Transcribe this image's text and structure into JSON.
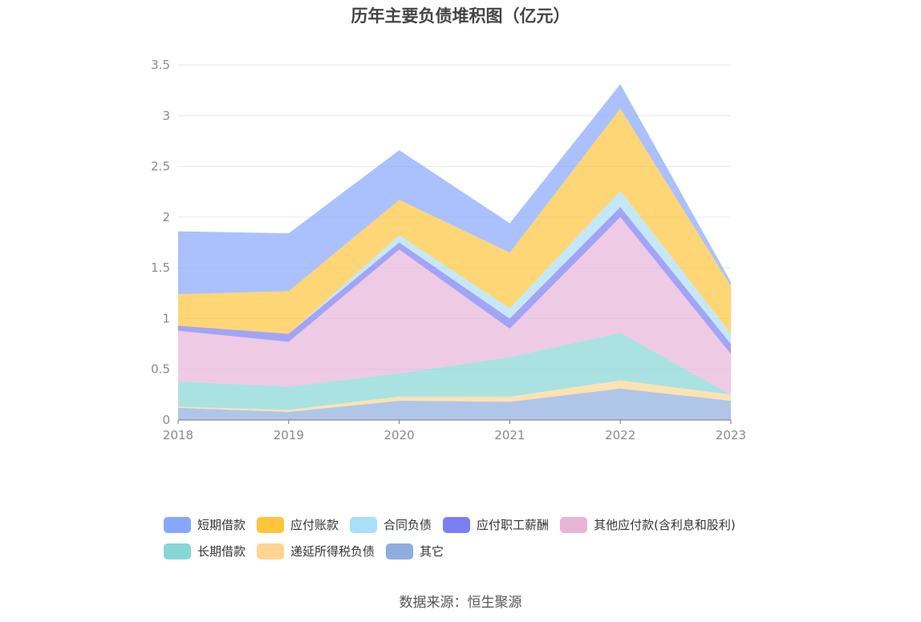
{
  "chart_data": {
    "type": "area",
    "title": "历年主要负债堆积图（亿元）",
    "stacked": true,
    "categories": [
      "2018",
      "2019",
      "2020",
      "2021",
      "2022",
      "2023"
    ],
    "y_ticks": [
      "0",
      "0.5",
      "1",
      "1.5",
      "2",
      "2.5",
      "3",
      "3.5"
    ],
    "ylim": [
      0,
      3.5
    ],
    "grid": true,
    "legend_position": "bottom",
    "series": [
      {
        "name": "其它",
        "color": "#8eaee0",
        "values": [
          0.12,
          0.08,
          0.19,
          0.18,
          0.31,
          0.19
        ]
      },
      {
        "name": "递延所得税负债",
        "color": "#fed590",
        "values": [
          0.01,
          0.02,
          0.04,
          0.05,
          0.08,
          0.06
        ]
      },
      {
        "name": "长期借款",
        "color": "#86d6d6",
        "values": [
          0.25,
          0.23,
          0.23,
          0.39,
          0.47,
          0.0
        ]
      },
      {
        "name": "其他应付款(含利息和股利)",
        "color": "#e8b4d8",
        "values": [
          0.5,
          0.44,
          1.22,
          0.28,
          1.14,
          0.4
        ]
      },
      {
        "name": "应付职工薪酬",
        "color": "#7c7ef2",
        "values": [
          0.05,
          0.08,
          0.07,
          0.1,
          0.1,
          0.1
        ]
      },
      {
        "name": "合同负债",
        "color": "#a9dff7",
        "values": [
          0.0,
          0.0,
          0.07,
          0.1,
          0.16,
          0.1
        ]
      },
      {
        "name": "应付账款",
        "color": "#fec43a",
        "values": [
          0.31,
          0.42,
          0.35,
          0.55,
          0.81,
          0.47
        ]
      },
      {
        "name": "短期借款",
        "color": "#87a7fe",
        "values": [
          0.62,
          0.57,
          0.49,
          0.29,
          0.24,
          0.04
        ]
      }
    ],
    "legend": [
      {
        "name": "短期借款",
        "color": "#87a7fe"
      },
      {
        "name": "应付账款",
        "color": "#fec43a"
      },
      {
        "name": "合同负债",
        "color": "#a9dff7"
      },
      {
        "name": "应付职工薪酬",
        "color": "#7c7ef2"
      },
      {
        "name": "其他应付款(含利息和股利)",
        "color": "#e8b4d8"
      },
      {
        "name": "长期借款",
        "color": "#86d6d6"
      },
      {
        "name": "递延所得税负债",
        "color": "#fed590"
      },
      {
        "name": "其它",
        "color": "#8eaee0"
      }
    ]
  },
  "source": "数据来源：恒生聚源"
}
